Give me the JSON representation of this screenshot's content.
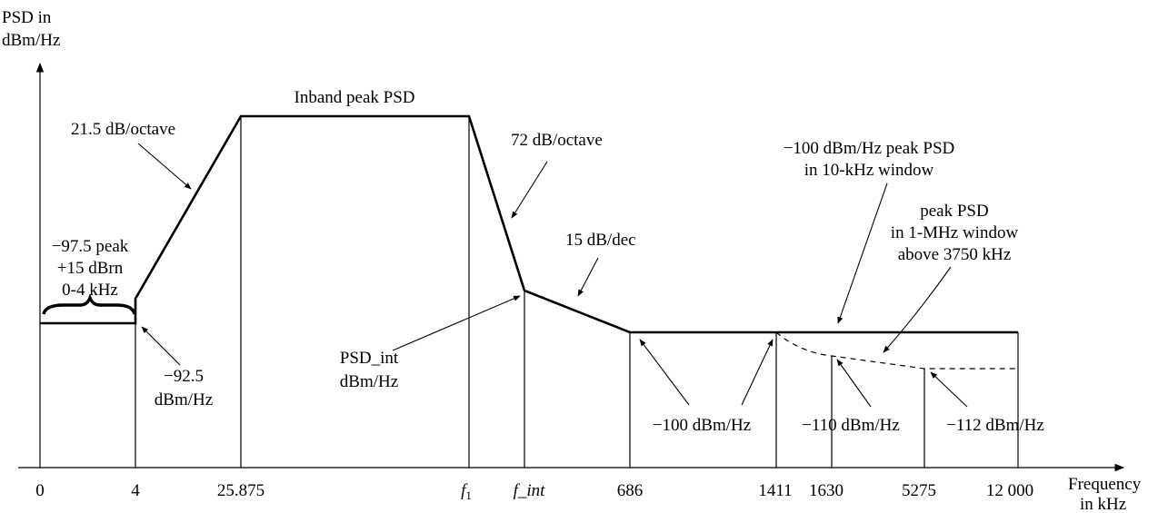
{
  "axes": {
    "y_label_line1": "PSD in",
    "y_label_line2": "dBm/Hz",
    "x_label_line1": "Frequency",
    "x_label_line2": "in kHz"
  },
  "ticks": [
    {
      "id": "t0",
      "label": "0"
    },
    {
      "id": "t4",
      "label": "4"
    },
    {
      "id": "t25875",
      "label": "25.875"
    },
    {
      "id": "tf1",
      "label": "f",
      "sub": "1"
    },
    {
      "id": "tfint",
      "label": "f_int"
    },
    {
      "id": "t686",
      "label": "686"
    },
    {
      "id": "t1411",
      "label": "1411"
    },
    {
      "id": "t1630",
      "label": "1630"
    },
    {
      "id": "t5275",
      "label": "5275"
    },
    {
      "id": "t12000",
      "label": "12 000"
    }
  ],
  "annotations": {
    "inband": "Inband peak PSD",
    "slope_up": "21.5 dB/octave",
    "slope_down": "72 dB/octave",
    "slope_dec": "15 dB/dec",
    "voice_line1": "−97.5 peak",
    "voice_line2": "+15 dBrn",
    "voice_line3": "0-4 kHz",
    "low_line1": "−92.5",
    "low_line2": "dBm/Hz",
    "psdint_line1": "PSD_int",
    "psdint_line2": "dBm/Hz",
    "peak10k_line1": "−100 dBm/Hz peak PSD",
    "peak10k_line2": "in 10-kHz window",
    "peak1m_line1": "peak PSD",
    "peak1m_line2": "in 1-MHz window",
    "peak1m_line3": "above 3750 kHz",
    "m100": "−100 dBm/Hz",
    "m110": "−110 dBm/Hz",
    "m112": "−112 dBm/Hz"
  }
}
